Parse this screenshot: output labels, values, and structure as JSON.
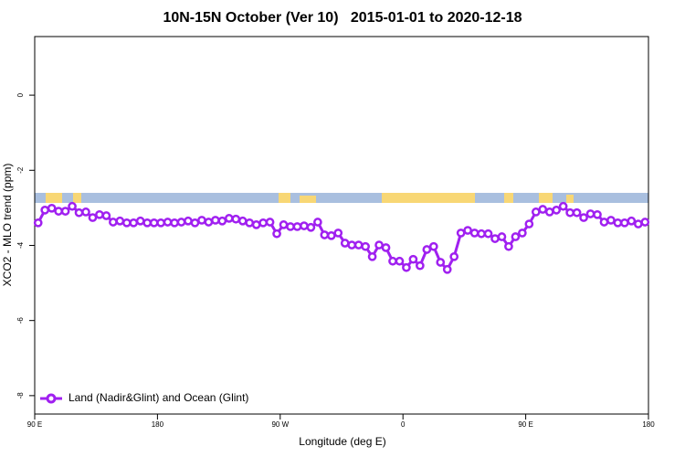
{
  "chart_data": {
    "type": "line",
    "title": "10N-15N October (Ver 10)   2015-01-01 to 2020-12-18",
    "x_label": "Longitude (deg E)",
    "y_label": "XCO2 - MLO trend (ppm)",
    "xlim": [
      90,
      540
    ],
    "xticks": [
      {
        "value": 90,
        "label": "90 E"
      },
      180,
      {
        "value": 270,
        "label": "90 W"
      },
      {
        "value": 360,
        "label": "0"
      },
      {
        "value": 450,
        "label": "90 E"
      },
      {
        "value": 540,
        "label": "180"
      }
    ],
    "ylim": [
      -8.49,
      1.56
    ],
    "yticks": [
      0,
      -2,
      -4,
      -6,
      -8
    ],
    "x": [
      92.5,
      97.5,
      102.5,
      107.5,
      112.5,
      117.5,
      122.5,
      127.5,
      132.5,
      137.5,
      142.5,
      147.5,
      152.5,
      157.5,
      162.5,
      167.5,
      172.5,
      177.5,
      182.5,
      187.5,
      192.5,
      197.5,
      202.5,
      207.5,
      212.5,
      217.5,
      222.5,
      227.5,
      232.5,
      237.5,
      242.5,
      247.5,
      252.5,
      257.5,
      262.5,
      267.5,
      272.5,
      277.5,
      282.5,
      287.5,
      292.5,
      297.5,
      302.5,
      307.5,
      312.5,
      317.5,
      322.5,
      327.5,
      332.5,
      337.5,
      342.5,
      347.5,
      352.5,
      357.5,
      362.5,
      367.5,
      372.5,
      377.5,
      382.5,
      387.5,
      392.5,
      397.5,
      402.5,
      407.5,
      412.5,
      417.5,
      422.5,
      427.5,
      432.5,
      437.5,
      442.5,
      447.5,
      452.5,
      457.5,
      462.5,
      467.5,
      472.5,
      477.5,
      482.5,
      487.5,
      492.5,
      497.5,
      502.5,
      507.5,
      512.5,
      517.5,
      522.5,
      527.5,
      532.5,
      537.5
    ],
    "series": [
      {
        "name": "Land (Nadir&Glint) and Ocean (Glint)",
        "color": "#a020f0",
        "values": [
          -3.4,
          -3.06,
          -3.01,
          -3.09,
          -3.09,
          -2.96,
          -3.13,
          -3.11,
          -3.26,
          -3.18,
          -3.21,
          -3.38,
          -3.35,
          -3.4,
          -3.4,
          -3.35,
          -3.4,
          -3.4,
          -3.4,
          -3.38,
          -3.4,
          -3.38,
          -3.35,
          -3.4,
          -3.33,
          -3.38,
          -3.33,
          -3.35,
          -3.28,
          -3.3,
          -3.35,
          -3.4,
          -3.45,
          -3.4,
          -3.38,
          -3.69,
          -3.45,
          -3.5,
          -3.5,
          -3.48,
          -3.52,
          -3.38,
          -3.72,
          -3.74,
          -3.67,
          -3.94,
          -3.99,
          -3.99,
          -4.03,
          -4.3,
          -3.99,
          -4.06,
          -4.42,
          -4.42,
          -4.59,
          -4.37,
          -4.54,
          -4.11,
          -4.03,
          -4.45,
          -4.64,
          -4.3,
          -3.67,
          -3.6,
          -3.67,
          -3.69,
          -3.69,
          -3.82,
          -3.77,
          -4.03,
          -3.77,
          -3.67,
          -3.43,
          -3.11,
          -3.04,
          -3.11,
          -3.06,
          -2.96,
          -3.13,
          -3.13,
          -3.26,
          -3.16,
          -3.18,
          -3.38,
          -3.33,
          -3.4,
          -3.4,
          -3.35,
          -3.43,
          -3.38
        ]
      }
    ]
  }
}
